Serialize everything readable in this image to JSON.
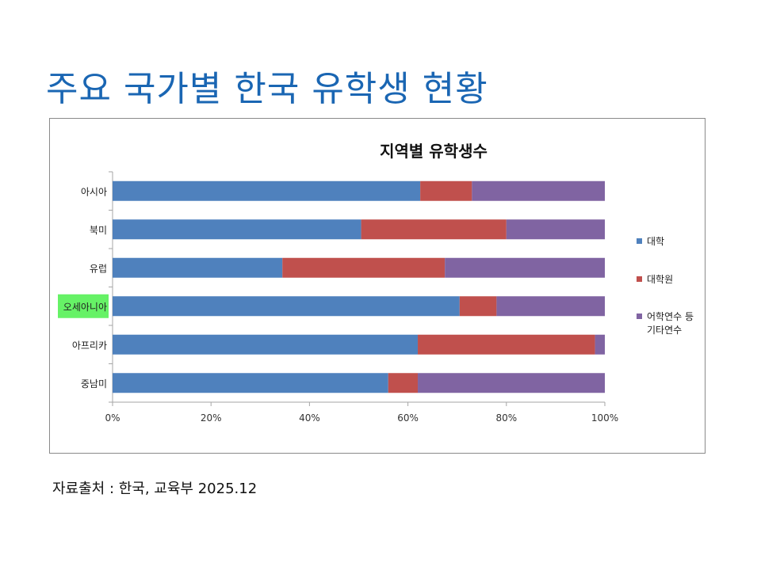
{
  "slide": {
    "title": "주요 국가별 한국 유학생 현황",
    "source": "자료출처 : 한국, 교육부 2025.12"
  },
  "chart_data": {
    "type": "bar",
    "orientation": "horizontal",
    "stacked": true,
    "title": "지역별 유학생수",
    "categories": [
      "아시아",
      "북미",
      "유럽",
      "오세아니아",
      "아프리카",
      "중남미"
    ],
    "highlighted_category": "오세아니아",
    "highlight_color": "#66f266",
    "series": [
      {
        "name": "대학",
        "color": "#4f81bd",
        "values": [
          62.5,
          50.5,
          34.5,
          70.5,
          62.0,
          56.0
        ]
      },
      {
        "name": "대학원",
        "color": "#c0504d",
        "values": [
          10.5,
          29.5,
          33.0,
          7.5,
          36.0,
          6.0
        ]
      },
      {
        "name": "어학연수 등\n기타연수",
        "color": "#8064a2",
        "values": [
          27.0,
          20.0,
          32.5,
          22.0,
          2.0,
          38.0
        ]
      }
    ],
    "xlim": [
      0,
      100
    ],
    "xticks": [
      "0%",
      "20%",
      "40%",
      "60%",
      "80%",
      "100%"
    ],
    "legend_position": "right",
    "grid": false
  }
}
